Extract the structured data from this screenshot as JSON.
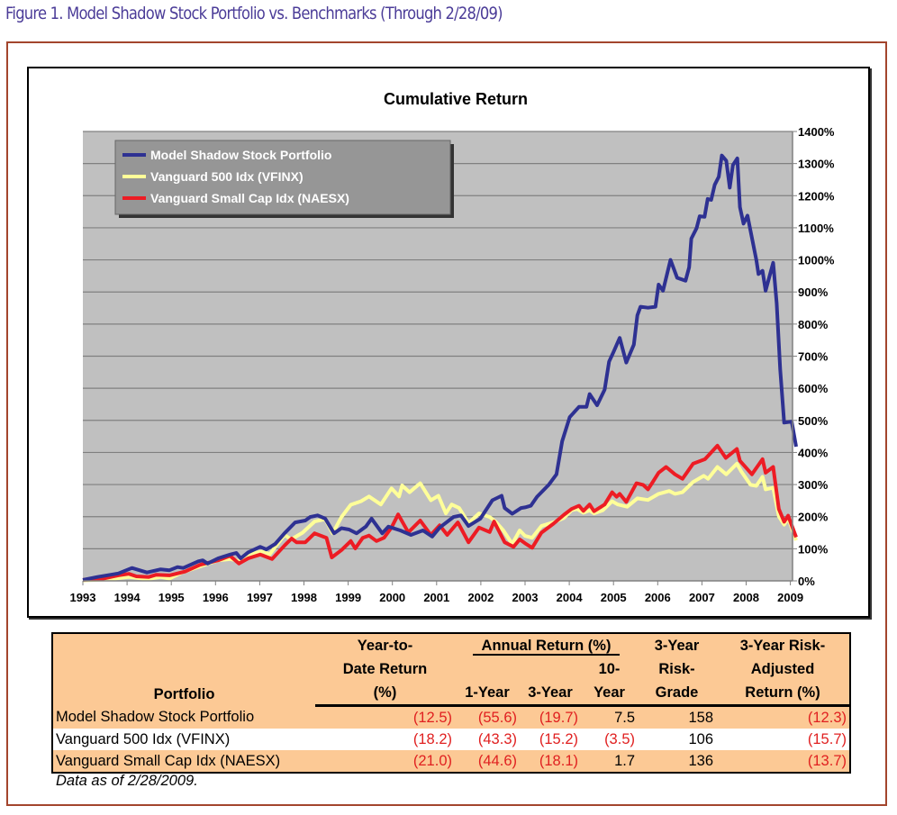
{
  "figure_title": "Figure 1. Model Shadow Stock Portfolio vs. Benchmarks (Through 2/28/09)",
  "colors": {
    "frame": "#a3452d",
    "title": "#4b3c98",
    "plot_bg": "#c0c0c0",
    "legend_bg": "#969696",
    "table_bg": "#fcc995",
    "negative": "#e02020"
  },
  "chart_data": {
    "type": "line",
    "title": "Cumulative Return",
    "xlabel": "",
    "ylabel": "",
    "xlim": [
      1993,
      2009.15
    ],
    "ylim": [
      0,
      1400
    ],
    "x_ticks": [
      "1993",
      "1994",
      "1995",
      "1996",
      "1997",
      "1998",
      "1999",
      "2000",
      "2001",
      "2002",
      "2003",
      "2004",
      "2005",
      "2006",
      "2007",
      "2008",
      "2009"
    ],
    "y_ticks": [
      "0%",
      "100%",
      "200%",
      "300%",
      "400%",
      "500%",
      "600%",
      "700%",
      "800%",
      "900%",
      "1000%",
      "1100%",
      "1200%",
      "1300%",
      "1400%"
    ],
    "grid": "horizontal",
    "legend_placement": "top-left",
    "series": [
      {
        "name": "Model Shadow Stock Portfolio",
        "color": "#2e3192",
        "points": [
          [
            1993,
            3
          ],
          [
            1993.33,
            12
          ],
          [
            1993.8,
            23
          ],
          [
            1994.11,
            40
          ],
          [
            1994.45,
            26
          ],
          [
            1994.76,
            36
          ],
          [
            1994.96,
            33
          ],
          [
            1995.14,
            43
          ],
          [
            1995.27,
            40
          ],
          [
            1995.61,
            61
          ],
          [
            1995.71,
            64
          ],
          [
            1995.82,
            54
          ],
          [
            1996.06,
            70
          ],
          [
            1996.33,
            82
          ],
          [
            1996.47,
            87
          ],
          [
            1996.57,
            70
          ],
          [
            1996.74,
            89
          ],
          [
            1997.01,
            106
          ],
          [
            1997.15,
            98
          ],
          [
            1997.35,
            115
          ],
          [
            1997.56,
            148
          ],
          [
            1997.8,
            182
          ],
          [
            1998.03,
            188
          ],
          [
            1998.14,
            199
          ],
          [
            1998.31,
            204
          ],
          [
            1998.48,
            194
          ],
          [
            1998.68,
            148
          ],
          [
            1998.85,
            164
          ],
          [
            1999.02,
            160
          ],
          [
            1999.19,
            148
          ],
          [
            1999.4,
            169
          ],
          [
            1999.53,
            194
          ],
          [
            1999.77,
            148
          ],
          [
            1999.91,
            169
          ],
          [
            2000.18,
            157
          ],
          [
            2000.42,
            143
          ],
          [
            2000.69,
            157
          ],
          [
            2000.9,
            138
          ],
          [
            2001.07,
            166
          ],
          [
            2001.38,
            199
          ],
          [
            2001.55,
            204
          ],
          [
            2001.72,
            171
          ],
          [
            2001.99,
            194
          ],
          [
            2002.26,
            251
          ],
          [
            2002.47,
            265
          ],
          [
            2002.54,
            227
          ],
          [
            2002.71,
            209
          ],
          [
            2002.91,
            227
          ],
          [
            2003.0,
            229
          ],
          [
            2003.13,
            234
          ],
          [
            2003.27,
            262
          ],
          [
            2003.54,
            300
          ],
          [
            2003.71,
            332
          ],
          [
            2003.84,
            435
          ],
          [
            2004.01,
            510
          ],
          [
            2004.22,
            542
          ],
          [
            2004.39,
            542
          ],
          [
            2004.46,
            582
          ],
          [
            2004.63,
            547
          ],
          [
            2004.8,
            596
          ],
          [
            2004.9,
            683
          ],
          [
            2005.0,
            713
          ],
          [
            2005.14,
            757
          ],
          [
            2005.29,
            680
          ],
          [
            2005.46,
            736
          ],
          [
            2005.54,
            827
          ],
          [
            2005.61,
            854
          ],
          [
            2005.78,
            851
          ],
          [
            2005.95,
            854
          ],
          [
            2006.02,
            923
          ],
          [
            2006.12,
            904
          ],
          [
            2006.29,
            1000
          ],
          [
            2006.44,
            944
          ],
          [
            2006.63,
            935
          ],
          [
            2006.71,
            977
          ],
          [
            2006.76,
            1066
          ],
          [
            2006.88,
            1099
          ],
          [
            2006.95,
            1136
          ],
          [
            2007.06,
            1134
          ],
          [
            2007.13,
            1190
          ],
          [
            2007.21,
            1187
          ],
          [
            2007.29,
            1234
          ],
          [
            2007.38,
            1259
          ],
          [
            2007.45,
            1325
          ],
          [
            2007.55,
            1309
          ],
          [
            2007.63,
            1225
          ],
          [
            2007.7,
            1295
          ],
          [
            2007.8,
            1316
          ],
          [
            2007.86,
            1164
          ],
          [
            2007.94,
            1113
          ],
          [
            2008.03,
            1138
          ],
          [
            2008.23,
            1000
          ],
          [
            2008.28,
            956
          ],
          [
            2008.37,
            966
          ],
          [
            2008.44,
            904
          ],
          [
            2008.61,
            991
          ],
          [
            2008.69,
            865
          ],
          [
            2008.77,
            659
          ],
          [
            2008.86,
            493
          ],
          [
            2009.03,
            496
          ],
          [
            2009.13,
            418
          ]
        ]
      },
      {
        "name": "Vanguard 500 Idx (VFINX)",
        "color": "#ffff99",
        "points": [
          [
            1993,
            1
          ],
          [
            1993.6,
            5
          ],
          [
            1994.04,
            12
          ],
          [
            1994.45,
            5
          ],
          [
            1994.76,
            12
          ],
          [
            1994.96,
            7
          ],
          [
            1995.24,
            26
          ],
          [
            1995.65,
            45
          ],
          [
            1996.06,
            64
          ],
          [
            1996.33,
            68
          ],
          [
            1996.57,
            61
          ],
          [
            1996.88,
            87
          ],
          [
            1997.08,
            92
          ],
          [
            1997.22,
            82
          ],
          [
            1997.56,
            143
          ],
          [
            1997.71,
            129
          ],
          [
            1997.97,
            150
          ],
          [
            1998.24,
            185
          ],
          [
            1998.48,
            192
          ],
          [
            1998.65,
            148
          ],
          [
            1998.85,
            199
          ],
          [
            1999.06,
            237
          ],
          [
            1999.29,
            248
          ],
          [
            1999.47,
            263
          ],
          [
            1999.74,
            238
          ],
          [
            1999.98,
            288
          ],
          [
            2000.15,
            263
          ],
          [
            2000.22,
            297
          ],
          [
            2000.39,
            276
          ],
          [
            2000.49,
            288
          ],
          [
            2000.63,
            304
          ],
          [
            2000.87,
            251
          ],
          [
            2001.04,
            265
          ],
          [
            2001.21,
            210
          ],
          [
            2001.34,
            238
          ],
          [
            2001.51,
            227
          ],
          [
            2001.72,
            180
          ],
          [
            2001.96,
            210
          ],
          [
            2002.2,
            199
          ],
          [
            2002.33,
            185
          ],
          [
            2002.51,
            157
          ],
          [
            2002.71,
            115
          ],
          [
            2002.88,
            157
          ],
          [
            2003.0,
            140
          ],
          [
            2003.16,
            134
          ],
          [
            2003.37,
            171
          ],
          [
            2003.64,
            182
          ],
          [
            2003.88,
            196
          ],
          [
            2004.05,
            220
          ],
          [
            2004.18,
            224
          ],
          [
            2004.32,
            212
          ],
          [
            2004.46,
            220
          ],
          [
            2004.56,
            210
          ],
          [
            2004.76,
            220
          ],
          [
            2004.97,
            248
          ],
          [
            2005.1,
            238
          ],
          [
            2005.31,
            231
          ],
          [
            2005.54,
            257
          ],
          [
            2005.78,
            252
          ],
          [
            2006.02,
            271
          ],
          [
            2006.26,
            280
          ],
          [
            2006.39,
            271
          ],
          [
            2006.56,
            276
          ],
          [
            2006.8,
            308
          ],
          [
            2007.04,
            327
          ],
          [
            2007.14,
            318
          ],
          [
            2007.35,
            355
          ],
          [
            2007.55,
            332
          ],
          [
            2007.79,
            365
          ],
          [
            2007.89,
            341
          ],
          [
            2008.1,
            299
          ],
          [
            2008.23,
            296
          ],
          [
            2008.37,
            324
          ],
          [
            2008.44,
            285
          ],
          [
            2008.61,
            290
          ],
          [
            2008.74,
            201
          ],
          [
            2008.86,
            175
          ],
          [
            2008.95,
            196
          ],
          [
            2009.13,
            126
          ]
        ]
      },
      {
        "name": "Vanguard Small Cap Idx (NAESX)",
        "color": "#ed1c24",
        "points": [
          [
            1993,
            3
          ],
          [
            1993.46,
            7
          ],
          [
            1993.8,
            17
          ],
          [
            1994.04,
            22
          ],
          [
            1994.21,
            14
          ],
          [
            1994.49,
            12
          ],
          [
            1994.66,
            19
          ],
          [
            1994.96,
            17
          ],
          [
            1995.31,
            29
          ],
          [
            1995.65,
            50
          ],
          [
            1996.06,
            64
          ],
          [
            1996.33,
            78
          ],
          [
            1996.53,
            54
          ],
          [
            1996.74,
            70
          ],
          [
            1997.01,
            82
          ],
          [
            1997.28,
            68
          ],
          [
            1997.56,
            110
          ],
          [
            1997.72,
            132
          ],
          [
            1997.83,
            120
          ],
          [
            1998.03,
            120
          ],
          [
            1998.24,
            148
          ],
          [
            1998.51,
            134
          ],
          [
            1998.63,
            73
          ],
          [
            1998.85,
            96
          ],
          [
            1999.06,
            124
          ],
          [
            1999.16,
            101
          ],
          [
            1999.33,
            134
          ],
          [
            1999.47,
            141
          ],
          [
            1999.64,
            124
          ],
          [
            1999.81,
            134
          ],
          [
            1999.98,
            166
          ],
          [
            2000.13,
            207
          ],
          [
            2000.36,
            151
          ],
          [
            2000.63,
            188
          ],
          [
            2000.87,
            143
          ],
          [
            2001.07,
            173
          ],
          [
            2001.24,
            143
          ],
          [
            2001.48,
            182
          ],
          [
            2001.72,
            120
          ],
          [
            2001.96,
            166
          ],
          [
            2002.2,
            152
          ],
          [
            2002.3,
            185
          ],
          [
            2002.54,
            120
          ],
          [
            2002.74,
            106
          ],
          [
            2002.88,
            129
          ],
          [
            2003.0,
            117
          ],
          [
            2003.16,
            103
          ],
          [
            2003.37,
            150
          ],
          [
            2003.64,
            178
          ],
          [
            2003.88,
            206
          ],
          [
            2004.05,
            224
          ],
          [
            2004.22,
            234
          ],
          [
            2004.32,
            218
          ],
          [
            2004.46,
            238
          ],
          [
            2004.56,
            217
          ],
          [
            2004.8,
            238
          ],
          [
            2004.97,
            276
          ],
          [
            2005.07,
            262
          ],
          [
            2005.14,
            271
          ],
          [
            2005.29,
            246
          ],
          [
            2005.52,
            304
          ],
          [
            2005.67,
            299
          ],
          [
            2005.78,
            285
          ],
          [
            2005.88,
            306
          ],
          [
            2006.02,
            337
          ],
          [
            2006.19,
            355
          ],
          [
            2006.39,
            332
          ],
          [
            2006.56,
            318
          ],
          [
            2006.8,
            365
          ],
          [
            2007.07,
            379
          ],
          [
            2007.35,
            421
          ],
          [
            2007.54,
            383
          ],
          [
            2007.79,
            411
          ],
          [
            2007.86,
            374
          ],
          [
            2008.13,
            332
          ],
          [
            2008.37,
            379
          ],
          [
            2008.44,
            337
          ],
          [
            2008.61,
            355
          ],
          [
            2008.74,
            224
          ],
          [
            2008.86,
            184
          ],
          [
            2008.95,
            203
          ],
          [
            2009.13,
            136
          ]
        ]
      }
    ]
  },
  "table": {
    "header": {
      "portfolio": "Portfolio",
      "ytd": [
        "Year-to-",
        "Date Return",
        "(%)"
      ],
      "annual_group": "Annual Return (%)",
      "one_year": "1-Year",
      "three_year": "3-Year",
      "ten_year": [
        "10-",
        "Year"
      ],
      "risk_grade": [
        "3-Year",
        "Risk-",
        "Grade"
      ],
      "risk_adj": [
        "3-Year Risk-",
        "Adjusted",
        "Return (%)"
      ]
    },
    "rows": [
      {
        "name": "Model Shadow Stock Portfolio",
        "ytd": "(12.5)",
        "y1": "(55.6)",
        "y3": "(19.7)",
        "y10": "7.5",
        "grade": "158",
        "radj": "(12.3)"
      },
      {
        "name": "Vanguard 500 Idx (VFINX)",
        "ytd": "(18.2)",
        "y1": "(43.3)",
        "y3": "(15.2)",
        "y10": "(3.5)",
        "grade": "106",
        "radj": "(15.7)"
      },
      {
        "name": "Vanguard Small Cap Idx (NAESX)",
        "ytd": "(21.0)",
        "y1": "(44.6)",
        "y3": "(18.1)",
        "y10": "1.7",
        "grade": "136",
        "radj": "(13.7)"
      }
    ],
    "footnote": "Data as of 2/28/2009."
  }
}
